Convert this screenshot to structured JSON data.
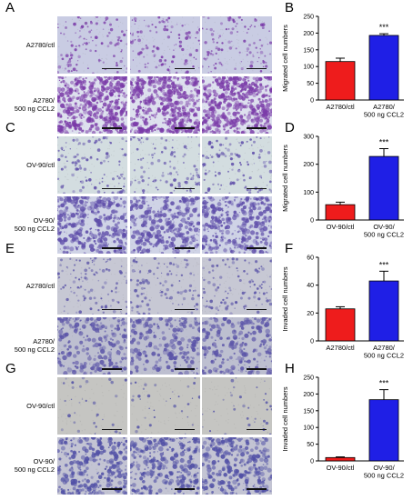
{
  "panels": [
    {
      "micro_letter": "A",
      "chart_letter": "B",
      "row_labels": [
        [
          "A2780/ctl"
        ],
        [
          "A2780/",
          "500 ng CCL2"
        ]
      ],
      "tile_style": {
        "bg1": "#c9cce3",
        "bg2": "#dde0ee",
        "dot": "#7a3aa8",
        "density": [
          1,
          4
        ]
      },
      "chart_data": {
        "type": "bar",
        "ylabel": "Migrated cell numbers",
        "ylim": [
          0,
          250
        ],
        "yticks": [
          0,
          50,
          100,
          150,
          200,
          250
        ],
        "categories": [
          [
            "A2780/ctl"
          ],
          [
            "A2780/",
            "500 ng CCL2"
          ]
        ],
        "values": [
          115,
          193
        ],
        "errors": [
          10,
          5
        ],
        "colors": [
          "#ee1c1c",
          "#1f1fe6"
        ],
        "annotation": "***"
      }
    },
    {
      "micro_letter": "C",
      "chart_letter": "D",
      "row_labels": [
        [
          "OV-90/ctl"
        ],
        [
          "OV-90/",
          "500 ng CCL2"
        ]
      ],
      "tile_style": {
        "bg1": "#d3dde0",
        "bg2": "#cfd3e6",
        "dot": "#5f4eaa",
        "density": [
          1,
          3
        ]
      },
      "chart_data": {
        "type": "bar",
        "ylabel": "Migrated cell numbers",
        "ylim": [
          0,
          300
        ],
        "yticks": [
          0,
          100,
          200,
          300
        ],
        "categories": [
          [
            "OV-90/ctl"
          ],
          [
            "OV-90/",
            "500 ng CCL2"
          ]
        ],
        "values": [
          55,
          228
        ],
        "errors": [
          9,
          28
        ],
        "colors": [
          "#ee1c1c",
          "#1f1fe6"
        ],
        "annotation": "***"
      }
    },
    {
      "micro_letter": "E",
      "chart_letter": "F",
      "row_labels": [
        [
          "A2780/ctl"
        ],
        [
          "A2780/",
          "500 ng CCL2"
        ]
      ],
      "tile_style": {
        "bg1": "#c7c8d4",
        "bg2": "#bdbfd0",
        "dot": "#5b54a8",
        "density": [
          1,
          2
        ]
      },
      "chart_data": {
        "type": "bar",
        "ylabel": "Invaded cell numbers",
        "ylim": [
          0,
          60
        ],
        "yticks": [
          0,
          20,
          40,
          60
        ],
        "categories": [
          [
            "A2780/ctl"
          ],
          [
            "A2780/",
            "500 ng CCL2"
          ]
        ],
        "values": [
          23,
          43
        ],
        "errors": [
          1.5,
          7
        ],
        "colors": [
          "#ee1c1c",
          "#1f1fe6"
        ],
        "annotation": "***"
      }
    },
    {
      "micro_letter": "G",
      "chart_letter": "H",
      "row_labels": [
        [
          "OV-90/ctl"
        ],
        [
          "OV-90/",
          "500 ng CCL2"
        ]
      ],
      "tile_style": {
        "bg1": "#c5c5c2",
        "bg2": "#c3c4d3",
        "dot": "#5150a6",
        "density": [
          0.3,
          2.5
        ]
      },
      "chart_data": {
        "type": "bar",
        "ylabel": "Invaded cell numbers",
        "ylim": [
          0,
          250
        ],
        "yticks": [
          0,
          50,
          100,
          150,
          200,
          250
        ],
        "categories": [
          [
            "OV-90/ctl"
          ],
          [
            "OV-90/",
            "500 ng CCL2"
          ]
        ],
        "values": [
          10,
          183
        ],
        "errors": [
          2,
          30
        ],
        "colors": [
          "#ee1c1c",
          "#1f1fe6"
        ],
        "annotation": "***"
      }
    }
  ]
}
